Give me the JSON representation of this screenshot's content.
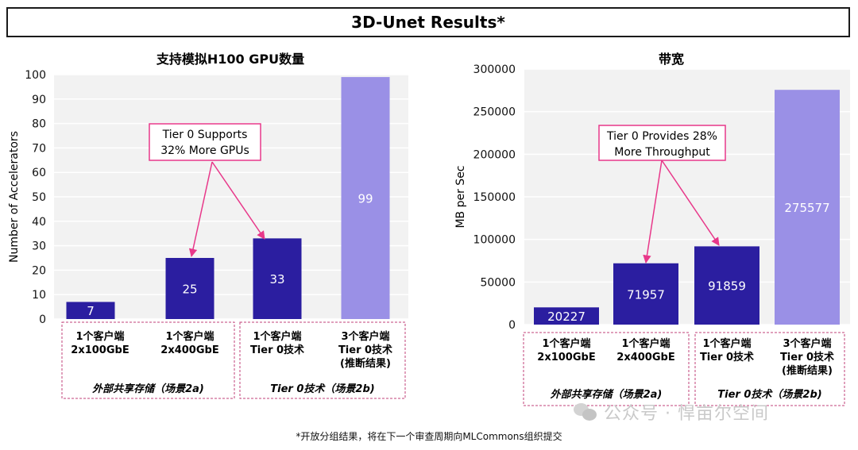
{
  "header": {
    "title": "3D-Unet Results*"
  },
  "footnote": "*开放分组结果，将在下一个审查周期向MLCommons组织提交",
  "watermark": "公众号 · 悍亩尔空间",
  "colors": {
    "bar": "#2b1ea0",
    "bar_light": "#9a90e6",
    "callout": "#e8388a",
    "group_border": "#c0407a",
    "bar_text": "#ffffff"
  },
  "chart_data": [
    {
      "type": "bar",
      "title": "支持模拟H100 GPU数量",
      "ylabel": "Number of Accelerators",
      "ylim": [
        0,
        100
      ],
      "yticks": [
        0,
        10,
        20,
        30,
        40,
        50,
        60,
        70,
        80,
        90,
        100
      ],
      "categories": [
        [
          "1个客户端",
          "2x100GbE"
        ],
        [
          "1个客户端",
          "2x400GbE"
        ],
        [
          "1个客户端",
          "Tier 0技术"
        ],
        [
          "3个客户端",
          "Tier 0技术",
          "(推断结果)"
        ]
      ],
      "values": [
        7,
        25,
        33,
        99
      ],
      "value_labels": [
        "7",
        "25",
        "33",
        "99"
      ],
      "highlight": [
        false,
        false,
        false,
        true
      ],
      "groups": [
        {
          "label": "外部共享存储（场景2a)",
          "span": [
            0,
            1
          ]
        },
        {
          "label": "Tier 0技术（场景2b)",
          "span": [
            2,
            3
          ]
        }
      ],
      "annotation": {
        "lines": [
          "Tier 0 Supports",
          "32% More GPUs"
        ],
        "points_to": [
          1,
          2
        ]
      }
    },
    {
      "type": "bar",
      "title": "带宽",
      "ylabel": "MB per Sec",
      "ylim": [
        0,
        300000
      ],
      "yticks": [
        0,
        50000,
        100000,
        150000,
        200000,
        250000,
        300000
      ],
      "categories": [
        [
          "1个客户端",
          "2x100GbE"
        ],
        [
          "1个客户端",
          "2x400GbE"
        ],
        [
          "1个客户端",
          "Tier 0技术"
        ],
        [
          "3个客户端",
          "Tier 0技术",
          "(推断结果)"
        ]
      ],
      "values": [
        20227,
        71957,
        91859,
        275577
      ],
      "value_labels": [
        "20227",
        "71957",
        "91859",
        "275577"
      ],
      "highlight": [
        false,
        false,
        false,
        true
      ],
      "groups": [
        {
          "label": "外部共享存储（场景2a)",
          "span": [
            0,
            1
          ]
        },
        {
          "label": "Tier 0技术（场景2b)",
          "span": [
            2,
            3
          ]
        }
      ],
      "annotation": {
        "lines": [
          "Tier 0 Provides 28%",
          "More Throughput"
        ],
        "points_to": [
          1,
          2
        ]
      }
    }
  ]
}
